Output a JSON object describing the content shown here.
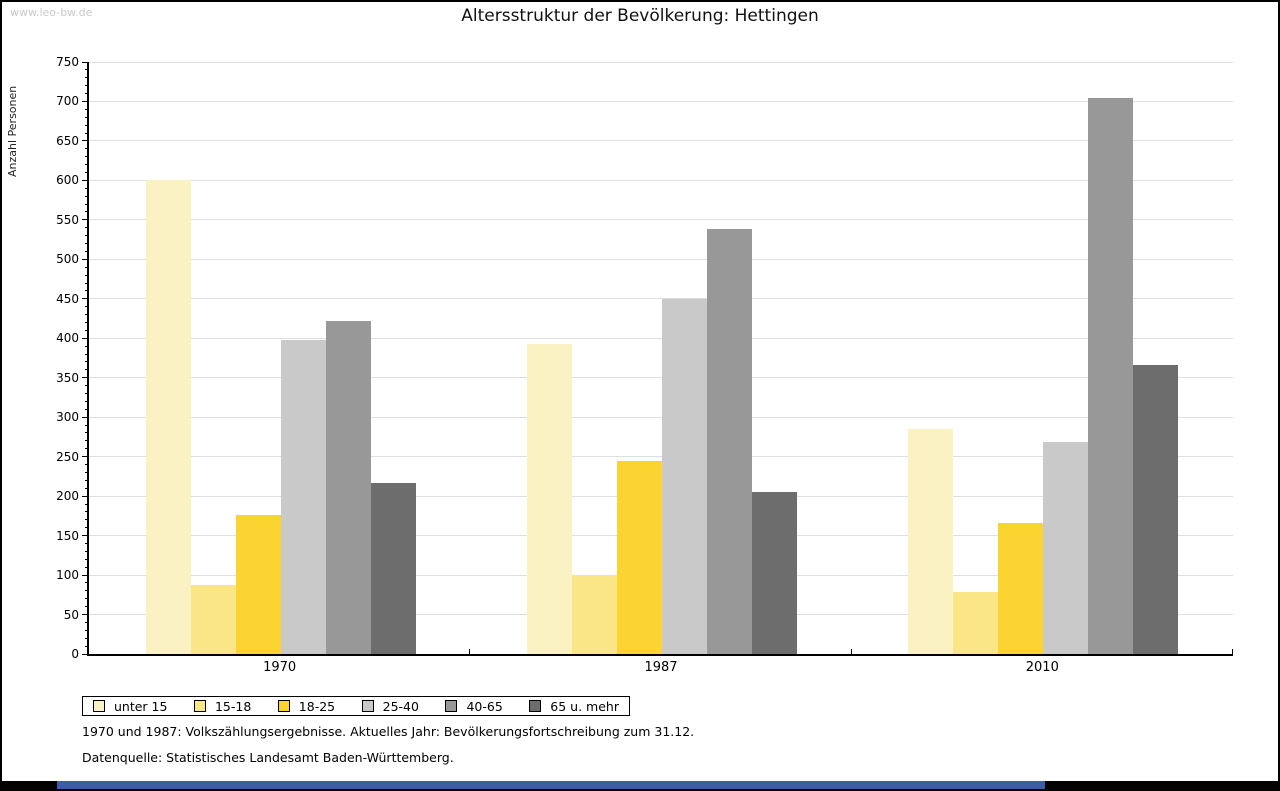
{
  "window": {
    "watermark": "www.leo-bw.de"
  },
  "chart_data": {
    "type": "bar",
    "title": "Altersstruktur der Bevölkerung: Hettingen",
    "ylabel": "Anzahl Personen",
    "xlabel": "",
    "categories": [
      "1970",
      "1987",
      "2010"
    ],
    "series": [
      {
        "name": "unter 15",
        "color": "#fbf2c4",
        "values": [
          600,
          393,
          285
        ]
      },
      {
        "name": "15-18",
        "color": "#fbe687",
        "values": [
          88,
          100,
          79
        ]
      },
      {
        "name": "18-25",
        "color": "#fcd432",
        "values": [
          176,
          245,
          166
        ]
      },
      {
        "name": "25-40",
        "color": "#c9c9c9",
        "values": [
          398,
          450,
          269
        ]
      },
      {
        "name": "40-65",
        "color": "#989898",
        "values": [
          422,
          538,
          704
        ]
      },
      {
        "name": "65 u. mehr",
        "color": "#6d6d6d",
        "values": [
          217,
          205,
          366
        ]
      }
    ],
    "ylim": [
      0,
      750
    ],
    "ytick_step": 50,
    "ytick_minor_step": 10,
    "grid": "horizontal-major",
    "gridline_color": "#dfdfdf",
    "legend_position": "bottom-left-box"
  },
  "footnotes": {
    "line1": "1970 und 1987: Volkszählungsergebnisse. Aktuelles Jahr: Bevölkerungsfortschreibung zum 31.12.",
    "line2": "Datenquelle: Statistisches Landesamt Baden-Württemberg."
  }
}
